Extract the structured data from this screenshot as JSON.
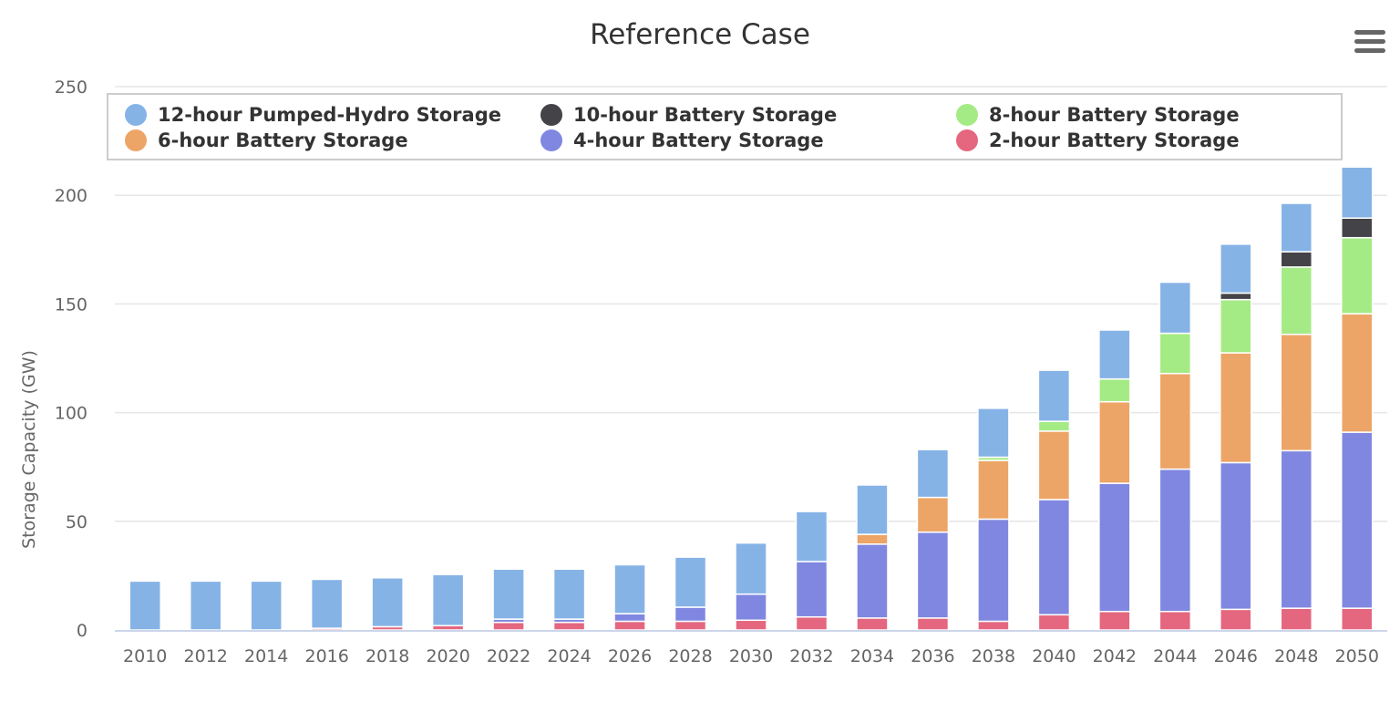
{
  "chart_data": {
    "type": "bar",
    "stacked": true,
    "title": "Reference Case",
    "xlabel": "",
    "ylabel": "Storage Capacity (GW)",
    "ylim": [
      0,
      250
    ],
    "yticks": [
      "0",
      "50",
      "100",
      "150",
      "200",
      "250"
    ],
    "grid": true,
    "legend_position": "top",
    "categories": [
      "2010",
      "2012",
      "2014",
      "2016",
      "2018",
      "2020",
      "2022",
      "2024",
      "2026",
      "2028",
      "2030",
      "2032",
      "2034",
      "2036",
      "2038",
      "2040",
      "2042",
      "2044",
      "2046",
      "2048",
      "2050"
    ],
    "series": [
      {
        "name": "2-hour Battery Storage",
        "color": "#e4677f",
        "values": [
          0,
          0,
          0,
          0.8,
          1.5,
          2,
          3.5,
          3.5,
          4,
          4,
          4.5,
          6,
          5.5,
          5.5,
          4,
          7,
          8.5,
          8.5,
          9.5,
          10,
          10
        ]
      },
      {
        "name": "4-hour Battery Storage",
        "color": "#8087e0",
        "values": [
          0,
          0,
          0,
          0,
          0,
          0,
          1.5,
          1.5,
          3.5,
          6.5,
          12,
          25.5,
          34,
          39.5,
          47,
          53,
          59,
          65.5,
          67.5,
          72.5,
          81
        ]
      },
      {
        "name": "6-hour Battery Storage",
        "color": "#eca567",
        "values": [
          0,
          0,
          0,
          0,
          0,
          0,
          0,
          0,
          0,
          0,
          0,
          0,
          4.5,
          16,
          27,
          31.5,
          37.5,
          44,
          50.5,
          53.5,
          54.5
        ]
      },
      {
        "name": "8-hour Battery Storage",
        "color": "#a5eb85",
        "values": [
          0,
          0,
          0,
          0,
          0,
          0,
          0,
          0,
          0,
          0,
          0,
          0,
          0,
          0,
          1.5,
          4.5,
          10.5,
          18.5,
          24.5,
          31,
          35
        ]
      },
      {
        "name": "10-hour Battery Storage",
        "color": "#434348",
        "values": [
          0,
          0,
          0,
          0,
          0,
          0,
          0,
          0,
          0,
          0,
          0,
          0,
          0,
          0,
          0,
          0,
          0,
          0,
          3,
          7,
          9
        ]
      },
      {
        "name": "12-hour Pumped-Hydro Storage",
        "color": "#86b3e6",
        "values": [
          22.5,
          22.5,
          22.5,
          22.5,
          22.5,
          23.5,
          23,
          23,
          22.5,
          23,
          23.5,
          23,
          22.7,
          22,
          22.5,
          23.5,
          22.5,
          23.5,
          22.5,
          22.3,
          23.5
        ]
      }
    ],
    "legend_order": [
      5,
      4,
      3,
      2,
      1,
      0
    ]
  },
  "menu_icon": "hamburger-menu-icon"
}
